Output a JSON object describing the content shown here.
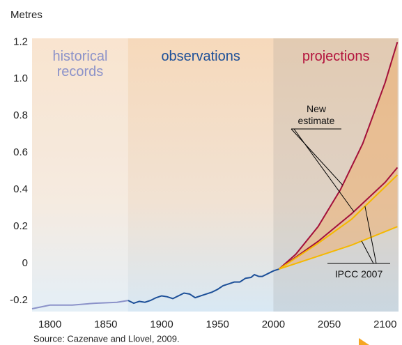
{
  "chart_data": {
    "type": "line",
    "y_label": "Metres",
    "source": "Source: Cazenave and Llovel, 2009.",
    "xlim": [
      1784,
      2112
    ],
    "ylim": [
      -0.26,
      1.22
    ],
    "xticks": [
      1800,
      1850,
      1900,
      1950,
      2000,
      2050,
      2100
    ],
    "yticks": [
      -0.2,
      0,
      0.2,
      0.4,
      0.6,
      0.8,
      {
        "value": 1,
        "label": "1.0"
      },
      1.2
    ],
    "grid": false,
    "regions": [
      {
        "label": "historical records",
        "from": 1784,
        "to": 1870,
        "color": "#8b92c9"
      },
      {
        "label": "observations",
        "from": 1870,
        "to": 2000,
        "color": "#1c4f98"
      },
      {
        "label": "projections",
        "from": 2000,
        "to": 2112,
        "color": "#b3123c"
      }
    ],
    "annotations": [
      {
        "text": "New estimate",
        "series": [
          2,
          3
        ],
        "x": 2062
      },
      {
        "text": "IPCC 2007",
        "series": [
          4,
          5
        ],
        "x": 2082
      }
    ],
    "series": [
      {
        "color": "#8b92c9",
        "x": [
          1784,
          1800,
          1820,
          1840,
          1860,
          1870
        ],
        "values": [
          -0.245,
          -0.225,
          -0.225,
          -0.215,
          -0.21,
          -0.2
        ]
      },
      {
        "color": "#1c4f98",
        "x": [
          1870,
          1875,
          1880,
          1885,
          1890,
          1895,
          1900,
          1905,
          1910,
          1915,
          1920,
          1925,
          1930,
          1935,
          1940,
          1945,
          1950,
          1955,
          1960,
          1965,
          1970,
          1975,
          1980,
          1983,
          1987,
          1990,
          1995,
          2000,
          2005
        ],
        "values": [
          -0.2,
          -0.215,
          -0.205,
          -0.21,
          -0.2,
          -0.185,
          -0.175,
          -0.18,
          -0.19,
          -0.175,
          -0.16,
          -0.165,
          -0.185,
          -0.175,
          -0.165,
          -0.155,
          -0.14,
          -0.12,
          -0.11,
          -0.1,
          -0.1,
          -0.08,
          -0.075,
          -0.06,
          -0.07,
          -0.07,
          -0.055,
          -0.04,
          -0.03
        ]
      },
      {
        "color": "#a3103a",
        "x": [
          2005,
          2020,
          2040,
          2060,
          2080,
          2100,
          2111
        ],
        "values": [
          -0.03,
          0.05,
          0.2,
          0.4,
          0.65,
          0.98,
          1.2
        ]
      },
      {
        "color": "#a3103a",
        "x": [
          2005,
          2040,
          2070,
          2100,
          2111
        ],
        "values": [
          -0.03,
          0.12,
          0.27,
          0.44,
          0.52
        ]
      },
      {
        "color": "#f5b800",
        "x": [
          2005,
          2040,
          2070,
          2111
        ],
        "values": [
          -0.03,
          0.11,
          0.24,
          0.48
        ]
      },
      {
        "color": "#f5b800",
        "x": [
          2005,
          2040,
          2070,
          2111
        ],
        "values": [
          -0.03,
          0.04,
          0.1,
          0.2
        ]
      }
    ]
  }
}
